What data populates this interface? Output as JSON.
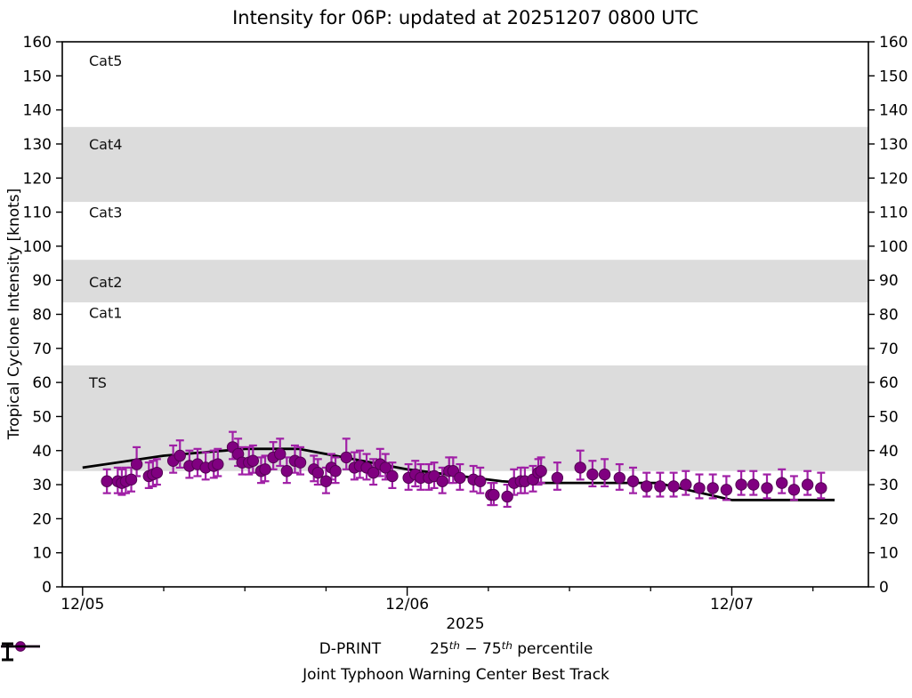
{
  "title": "Intensity for 06P: updated at 20251207 0800 UTC",
  "axes": {
    "ylabel": "Tropical Cyclone Intensity [knots]",
    "year_label": "2025",
    "ylim": [
      0,
      160
    ],
    "y_ticks": [
      0,
      10,
      20,
      30,
      40,
      50,
      60,
      70,
      80,
      90,
      100,
      110,
      120,
      130,
      140,
      150,
      160
    ],
    "xlim_hours": [
      -1.5,
      58.1
    ],
    "x_major_ticks": [
      {
        "hours": 0,
        "label": "12/05"
      },
      {
        "hours": 24,
        "label": "12/06"
      },
      {
        "hours": 48,
        "label": "12/07"
      }
    ],
    "x_minor_step_hours": 6
  },
  "bands": [
    {
      "label": "Cat5",
      "from": 137,
      "to": 160,
      "shaded": false,
      "label_v": 154.5
    },
    {
      "label": "Cat4",
      "from": 113,
      "to": 135,
      "shaded": true,
      "label_v": 130
    },
    {
      "label": "Cat3",
      "from": 96,
      "to": 113,
      "shaded": false,
      "label_v": 110
    },
    {
      "label": "Cat2",
      "from": 83.5,
      "to": 96,
      "shaded": true,
      "label_v": 89.5
    },
    {
      "label": "Cat1",
      "from": 65,
      "to": 83.5,
      "shaded": false,
      "label_v": 80.5
    },
    {
      "label": "TS",
      "from": 34,
      "to": 65,
      "shaded": true,
      "label_v": 60
    }
  ],
  "colors": {
    "band_gray": "#dcdcdc",
    "marker_fill": "#800080",
    "marker_edge": "#530253",
    "errorbar": "#a020a6",
    "best_track": "#000000",
    "axis": "#000000"
  },
  "legend": {
    "dprint_label": "D-PRINT",
    "pct_25": "25",
    "pct_sup1": "th",
    "pct_mid": " − 75",
    "pct_sup2": "th",
    "pct_tail": " percentile",
    "besttrack_label": "Joint Typhoon Warning Center Best Track"
  },
  "chart_data": {
    "type": "scatter",
    "x_unit": "hours since 2025-12-05 00:00 UTC",
    "point_format": [
      "t_hours",
      "intensity_kt",
      "pct25_kt",
      "pct75_kt"
    ],
    "series": [
      {
        "name": "D-PRINT",
        "marker": "circle",
        "color": "#800080",
        "points": [
          [
            1.8,
            31,
            27.5,
            34.5
          ],
          [
            2.6,
            31,
            27.5,
            35
          ],
          [
            2.9,
            30.5,
            27,
            34.5
          ],
          [
            3.2,
            31,
            27.5,
            35
          ],
          [
            3.6,
            31.5,
            28,
            35
          ],
          [
            4.0,
            36,
            32.5,
            41
          ],
          [
            4.9,
            32.5,
            29,
            36.5
          ],
          [
            5.2,
            33,
            29.5,
            37
          ],
          [
            5.5,
            33.5,
            30,
            37.5
          ],
          [
            6.7,
            37,
            33.5,
            41.5
          ],
          [
            7.2,
            38.5,
            35,
            43
          ],
          [
            7.9,
            35.5,
            32,
            40
          ],
          [
            8.5,
            36,
            32.5,
            40.5
          ],
          [
            9.1,
            35,
            31.5,
            39.5
          ],
          [
            9.7,
            35.5,
            32,
            40
          ],
          [
            10.0,
            36,
            32.5,
            40.5
          ],
          [
            11.1,
            41,
            37.5,
            45.5
          ],
          [
            11.5,
            39,
            35.5,
            43.5
          ],
          [
            11.8,
            36.5,
            33,
            41
          ],
          [
            12.3,
            36.5,
            33,
            41
          ],
          [
            12.6,
            37,
            33.5,
            41.5
          ],
          [
            13.2,
            34,
            30.5,
            38
          ],
          [
            13.5,
            34.5,
            31,
            38.5
          ],
          [
            14.1,
            38,
            34.5,
            42.5
          ],
          [
            14.6,
            39,
            35.5,
            43.5
          ],
          [
            15.1,
            34,
            30.5,
            38
          ],
          [
            15.7,
            37,
            33.5,
            41.5
          ],
          [
            16.1,
            36.5,
            33,
            41
          ],
          [
            17.1,
            34.5,
            31,
            38.5
          ],
          [
            17.4,
            33.5,
            30,
            37.5
          ],
          [
            18.0,
            31,
            27.5,
            35
          ],
          [
            18.4,
            35,
            31.5,
            39
          ],
          [
            18.7,
            34,
            30.5,
            38
          ],
          [
            19.5,
            38,
            34.5,
            43.5
          ],
          [
            20.1,
            35,
            31.5,
            39.5
          ],
          [
            20.5,
            35.5,
            32,
            40
          ],
          [
            21.0,
            35,
            31.5,
            39
          ],
          [
            21.5,
            33.5,
            30,
            37.5
          ],
          [
            22.0,
            36,
            32.5,
            40.5
          ],
          [
            22.4,
            35,
            31.5,
            39
          ],
          [
            22.9,
            32.5,
            29,
            36.5
          ],
          [
            24.1,
            32,
            28.5,
            36
          ],
          [
            24.6,
            33,
            29.5,
            37
          ],
          [
            25.0,
            32,
            28.5,
            36
          ],
          [
            25.6,
            32,
            28.5,
            36
          ],
          [
            26.0,
            32.5,
            29,
            36.5
          ],
          [
            26.6,
            31,
            27.5,
            35
          ],
          [
            27.1,
            34,
            30.5,
            38
          ],
          [
            27.4,
            34,
            30.5,
            38
          ],
          [
            27.9,
            32,
            28.5,
            36
          ],
          [
            28.9,
            31.5,
            28,
            35.5
          ],
          [
            29.4,
            31,
            27.5,
            35
          ],
          [
            30.2,
            27,
            24,
            30.5
          ],
          [
            30.4,
            27,
            24,
            30.5
          ],
          [
            31.4,
            26.5,
            23.5,
            30
          ],
          [
            31.9,
            30.5,
            27,
            34.5
          ],
          [
            32.4,
            31,
            27.5,
            35
          ],
          [
            32.7,
            31,
            27.5,
            35
          ],
          [
            33.3,
            31.5,
            28,
            35.5
          ],
          [
            33.7,
            33.5,
            30,
            37.5
          ],
          [
            33.9,
            34,
            30.5,
            38
          ],
          [
            35.1,
            32,
            28.5,
            36.5
          ],
          [
            36.8,
            35,
            31.5,
            40
          ],
          [
            37.7,
            33,
            29.5,
            37
          ],
          [
            38.6,
            33,
            29.5,
            37.5
          ],
          [
            39.7,
            32,
            28.5,
            36
          ],
          [
            40.7,
            31,
            27.5,
            35
          ],
          [
            41.7,
            29.5,
            26.5,
            33.5
          ],
          [
            42.7,
            29.5,
            26.5,
            33.5
          ],
          [
            43.7,
            29.5,
            26.5,
            33.5
          ],
          [
            44.6,
            30,
            27,
            34
          ],
          [
            45.6,
            29,
            26,
            33
          ],
          [
            46.6,
            29,
            26,
            33
          ],
          [
            47.6,
            28.5,
            25.5,
            32.5
          ],
          [
            48.7,
            30,
            27,
            34
          ],
          [
            49.6,
            30,
            27,
            34
          ],
          [
            50.6,
            29,
            26,
            33
          ],
          [
            51.7,
            30.5,
            27.5,
            34.5
          ],
          [
            52.6,
            28.5,
            25.5,
            32.5
          ],
          [
            53.6,
            30,
            27,
            34
          ],
          [
            54.6,
            29,
            26,
            33.5
          ]
        ]
      },
      {
        "name": "Joint Typhoon Warning Center Best Track",
        "marker": "none",
        "color": "#000000",
        "points": [
          [
            0,
            35
          ],
          [
            6,
            38.5
          ],
          [
            12,
            40.5
          ],
          [
            16,
            40.5
          ],
          [
            24,
            34.5
          ],
          [
            28,
            32.5
          ],
          [
            31,
            31
          ],
          [
            33,
            30.5
          ],
          [
            42.5,
            30.5
          ],
          [
            48,
            25.5
          ],
          [
            55.6,
            25.5
          ]
        ]
      }
    ]
  }
}
